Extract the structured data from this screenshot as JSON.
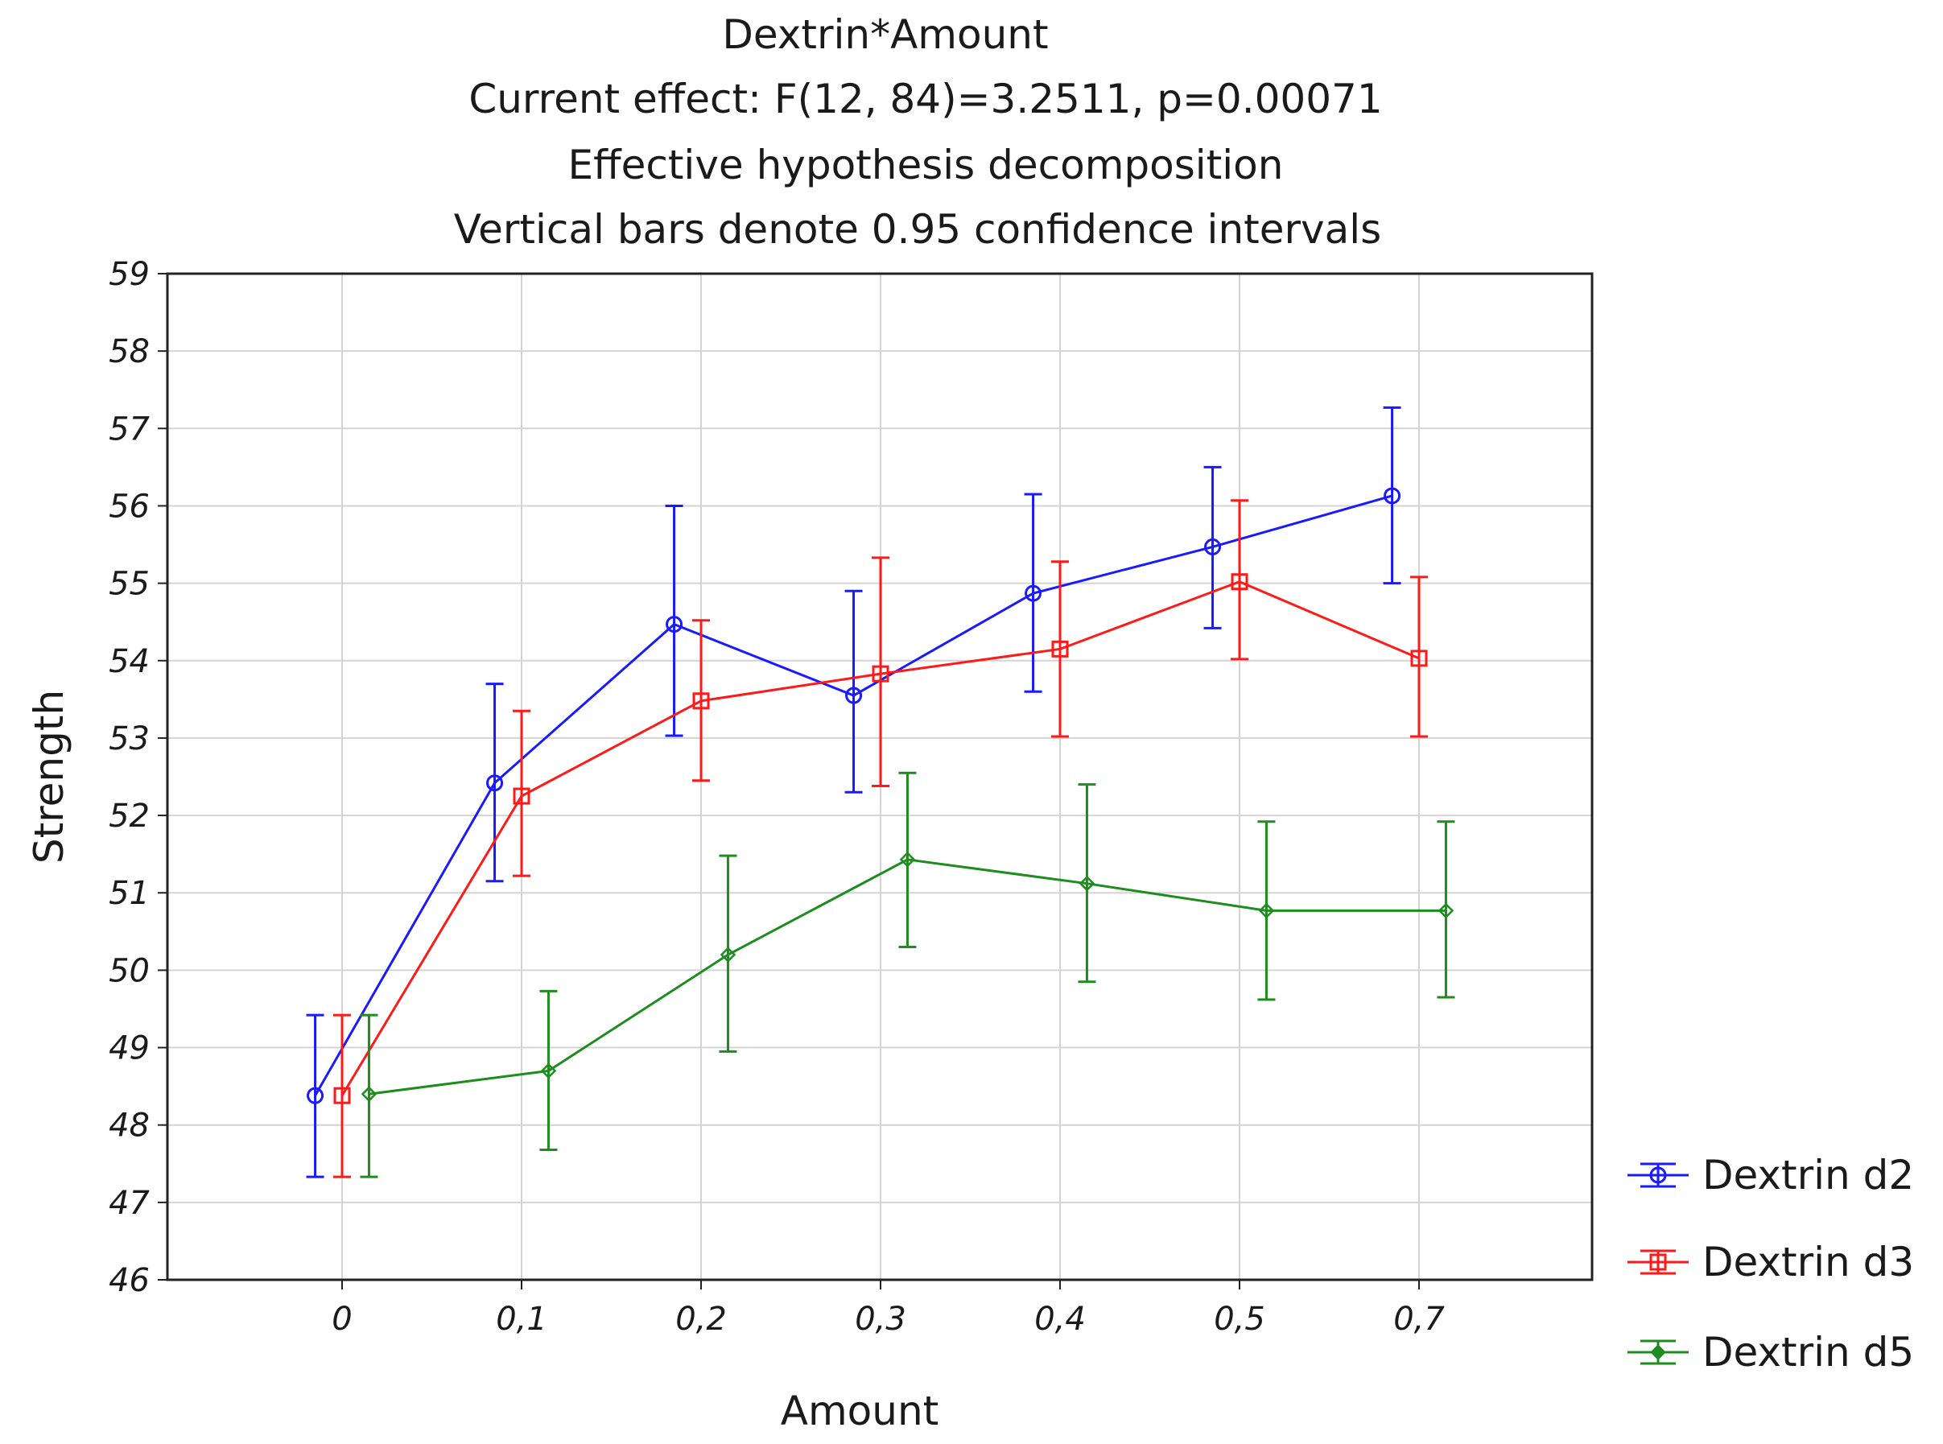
{
  "chart_data": {
    "type": "line",
    "title_lines": [
      "Dextrin*Amount",
      "Current effect: F(12, 84)=3.2511, p=0.00071",
      "Effective hypothesis decomposition",
      "Vertical bars denote 0.95 confidence intervals"
    ],
    "xlabel": "Amount",
    "ylabel": "Strength",
    "categories": [
      "0",
      "0,1",
      "0,2",
      "0,3",
      "0,4",
      "0,5",
      "0,7"
    ],
    "ylim": [
      46,
      59
    ],
    "yticks": [
      "46",
      "47",
      "48",
      "49",
      "50",
      "51",
      "52",
      "53",
      "54",
      "55",
      "56",
      "57",
      "58",
      "59"
    ],
    "grid": true,
    "legend_position": "right-bottom, outside plot",
    "series": [
      {
        "name": "Dextrin d2",
        "color": "#1a1aff",
        "marker": "circle",
        "offset": -0.15,
        "values": [
          48.38,
          52.42,
          54.47,
          53.55,
          54.87,
          55.47,
          56.13
        ],
        "ci_low": [
          47.33,
          51.15,
          53.03,
          52.3,
          53.6,
          54.42,
          55.0
        ],
        "ci_high": [
          49.42,
          53.7,
          56.0,
          54.9,
          56.15,
          56.5,
          57.27
        ]
      },
      {
        "name": "Dextrin d3",
        "color": "#ff1a1a",
        "marker": "square",
        "offset": 0,
        "values": [
          48.38,
          52.25,
          53.48,
          53.83,
          54.15,
          55.02,
          54.03
        ],
        "ci_low": [
          47.33,
          51.22,
          52.45,
          52.38,
          53.02,
          54.02,
          53.02
        ],
        "ci_high": [
          49.42,
          53.35,
          54.52,
          55.33,
          55.28,
          56.07,
          55.08
        ]
      },
      {
        "name": "Dextrin d5",
        "color": "#1e8c1e",
        "marker": "diamond",
        "offset": 0.15,
        "values": [
          48.4,
          48.7,
          50.2,
          51.43,
          51.12,
          50.77,
          50.77
        ],
        "ci_low": [
          47.33,
          47.68,
          48.95,
          50.3,
          49.85,
          49.62,
          49.65
        ],
        "ci_high": [
          49.42,
          49.73,
          51.48,
          52.55,
          52.4,
          51.92,
          51.92
        ]
      }
    ]
  }
}
